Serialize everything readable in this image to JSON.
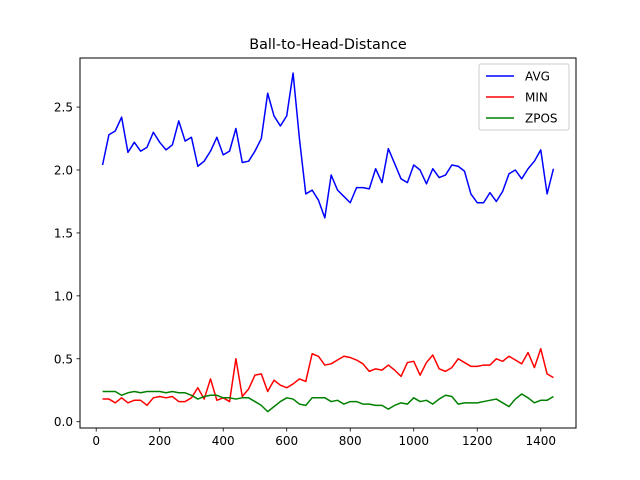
{
  "chart_data": {
    "type": "line",
    "title": "Ball-to-Head-Distance",
    "xlabel": "",
    "ylabel": "",
    "xlim": [
      -51,
      1511
    ],
    "ylim": [
      -0.05,
      2.89
    ],
    "xticks": [
      0,
      200,
      400,
      600,
      800,
      1000,
      1200,
      1400
    ],
    "yticks": [
      0.0,
      0.5,
      1.0,
      1.5,
      2.0,
      2.5
    ],
    "grid": false,
    "legend_position": "top-right",
    "x": [
      20,
      40,
      60,
      80,
      100,
      120,
      140,
      160,
      180,
      200,
      220,
      240,
      260,
      280,
      300,
      320,
      340,
      360,
      380,
      400,
      420,
      440,
      460,
      480,
      500,
      520,
      540,
      560,
      580,
      600,
      620,
      640,
      660,
      680,
      700,
      720,
      740,
      760,
      780,
      800,
      820,
      840,
      860,
      880,
      900,
      920,
      940,
      960,
      980,
      1000,
      1020,
      1040,
      1060,
      1080,
      1100,
      1120,
      1140,
      1160,
      1180,
      1200,
      1220,
      1240,
      1260,
      1280,
      1300,
      1320,
      1340,
      1360,
      1380,
      1400,
      1420,
      1440
    ],
    "series": [
      {
        "name": "AVG",
        "color": "#0000ff",
        "values": [
          2.04,
          2.28,
          2.31,
          2.42,
          2.14,
          2.22,
          2.15,
          2.18,
          2.3,
          2.22,
          2.16,
          2.2,
          2.39,
          2.23,
          2.26,
          2.03,
          2.07,
          2.15,
          2.26,
          2.12,
          2.15,
          2.33,
          2.06,
          2.07,
          2.15,
          2.25,
          2.61,
          2.43,
          2.35,
          2.43,
          2.77,
          2.25,
          1.81,
          1.84,
          1.76,
          1.62,
          1.96,
          1.84,
          1.79,
          1.74,
          1.86,
          1.86,
          1.85,
          2.01,
          1.9,
          2.17,
          2.05,
          1.93,
          1.9,
          2.04,
          2.0,
          1.89,
          2.01,
          1.94,
          1.96,
          2.04,
          2.03,
          1.99,
          1.81,
          1.74,
          1.74,
          1.82,
          1.75,
          1.83,
          1.97,
          2.0,
          1.93,
          2.01,
          2.07,
          2.16,
          1.81,
          2.01
        ]
      },
      {
        "name": "MIN",
        "color": "#ff0000",
        "values": [
          0.18,
          0.18,
          0.15,
          0.19,
          0.15,
          0.17,
          0.17,
          0.13,
          0.19,
          0.2,
          0.19,
          0.2,
          0.16,
          0.16,
          0.19,
          0.27,
          0.18,
          0.34,
          0.17,
          0.19,
          0.16,
          0.5,
          0.2,
          0.26,
          0.37,
          0.38,
          0.24,
          0.33,
          0.29,
          0.27,
          0.3,
          0.34,
          0.32,
          0.54,
          0.52,
          0.45,
          0.46,
          0.49,
          0.52,
          0.51,
          0.49,
          0.46,
          0.4,
          0.42,
          0.41,
          0.45,
          0.41,
          0.36,
          0.47,
          0.48,
          0.37,
          0.47,
          0.53,
          0.42,
          0.4,
          0.43,
          0.5,
          0.47,
          0.44,
          0.44,
          0.45,
          0.45,
          0.5,
          0.48,
          0.52,
          0.49,
          0.46,
          0.55,
          0.43,
          0.58,
          0.38,
          0.35
        ]
      },
      {
        "name": "ZPOS",
        "color": "#008000",
        "values": [
          0.24,
          0.24,
          0.24,
          0.21,
          0.23,
          0.24,
          0.23,
          0.24,
          0.24,
          0.24,
          0.23,
          0.24,
          0.23,
          0.23,
          0.21,
          0.18,
          0.2,
          0.21,
          0.21,
          0.19,
          0.19,
          0.18,
          0.19,
          0.19,
          0.16,
          0.13,
          0.08,
          0.12,
          0.16,
          0.19,
          0.18,
          0.14,
          0.13,
          0.19,
          0.19,
          0.19,
          0.16,
          0.17,
          0.14,
          0.16,
          0.16,
          0.14,
          0.14,
          0.13,
          0.13,
          0.1,
          0.13,
          0.15,
          0.14,
          0.19,
          0.16,
          0.17,
          0.14,
          0.18,
          0.21,
          0.2,
          0.14,
          0.15,
          0.15,
          0.15,
          0.16,
          0.17,
          0.18,
          0.15,
          0.12,
          0.18,
          0.22,
          0.19,
          0.15,
          0.17,
          0.17,
          0.2
        ]
      }
    ]
  }
}
